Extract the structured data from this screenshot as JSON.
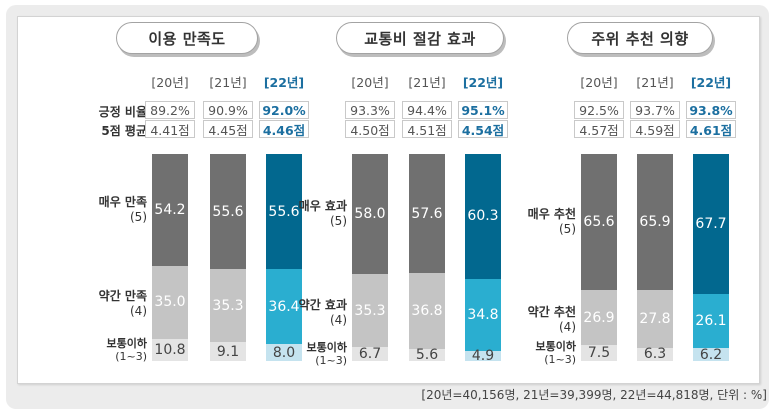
{
  "footnote": "[20년=40,156명, 21년=39,399명, 22년=44,818명, 단위 : %]",
  "row_labels": {
    "positive_rate": "긍정 비율",
    "score": "5점 평균"
  },
  "colors": {
    "prior_top": "#707070",
    "prior_mid": "#c4c4c4",
    "prior_low": "#e4e4e4",
    "current_top": "#02688f",
    "current_mid": "#2aaed0",
    "current_low": "#c5e3ef",
    "current_text": "#1c6fa0"
  },
  "chart_data": [
    {
      "type": "bar",
      "stacked": true,
      "title": "이용 만족도",
      "categories": [
        "[20년]",
        "[21년]",
        "[22년]"
      ],
      "positive_rate": [
        "89.2%",
        "90.9%",
        "92.0%"
      ],
      "score": [
        "4.41점",
        "4.45점",
        "4.46점"
      ],
      "series": [
        {
          "name": "매우 만족",
          "code": "(5)",
          "values": [
            54.2,
            55.6,
            55.6
          ]
        },
        {
          "name": "약간 만족",
          "code": "(4)",
          "values": [
            35.0,
            35.3,
            36.4
          ]
        },
        {
          "name": "보통이하",
          "code": "(1~3)",
          "values": [
            10.8,
            9.1,
            8.0
          ]
        }
      ],
      "ylim": [
        0,
        100
      ]
    },
    {
      "type": "bar",
      "stacked": true,
      "title": "교통비 절감 효과",
      "categories": [
        "[20년]",
        "[21년]",
        "[22년]"
      ],
      "positive_rate": [
        "93.3%",
        "94.4%",
        "95.1%"
      ],
      "score": [
        "4.50점",
        "4.51점",
        "4.54점"
      ],
      "series": [
        {
          "name": "매우 효과",
          "code": "(5)",
          "values": [
            58.0,
            57.6,
            60.3
          ]
        },
        {
          "name": "약간 효과",
          "code": "(4)",
          "values": [
            35.3,
            36.8,
            34.8
          ]
        },
        {
          "name": "보통이하",
          "code": "(1~3)",
          "values": [
            6.7,
            5.6,
            4.9
          ]
        }
      ],
      "ylim": [
        0,
        100
      ]
    },
    {
      "type": "bar",
      "stacked": true,
      "title": "주위 추천 의향",
      "categories": [
        "[20년]",
        "[21년]",
        "[22년]"
      ],
      "positive_rate": [
        "92.5%",
        "93.7%",
        "93.8%"
      ],
      "score": [
        "4.57점",
        "4.59점",
        "4.61점"
      ],
      "series": [
        {
          "name": "매우 추천",
          "code": "(5)",
          "values": [
            65.6,
            65.9,
            67.7
          ]
        },
        {
          "name": "약간 추천",
          "code": "(4)",
          "values": [
            26.9,
            27.8,
            26.1
          ]
        },
        {
          "name": "보통이하",
          "code": "(1~3)",
          "values": [
            7.5,
            6.3,
            6.2
          ]
        }
      ],
      "ylim": [
        0,
        100
      ]
    }
  ]
}
